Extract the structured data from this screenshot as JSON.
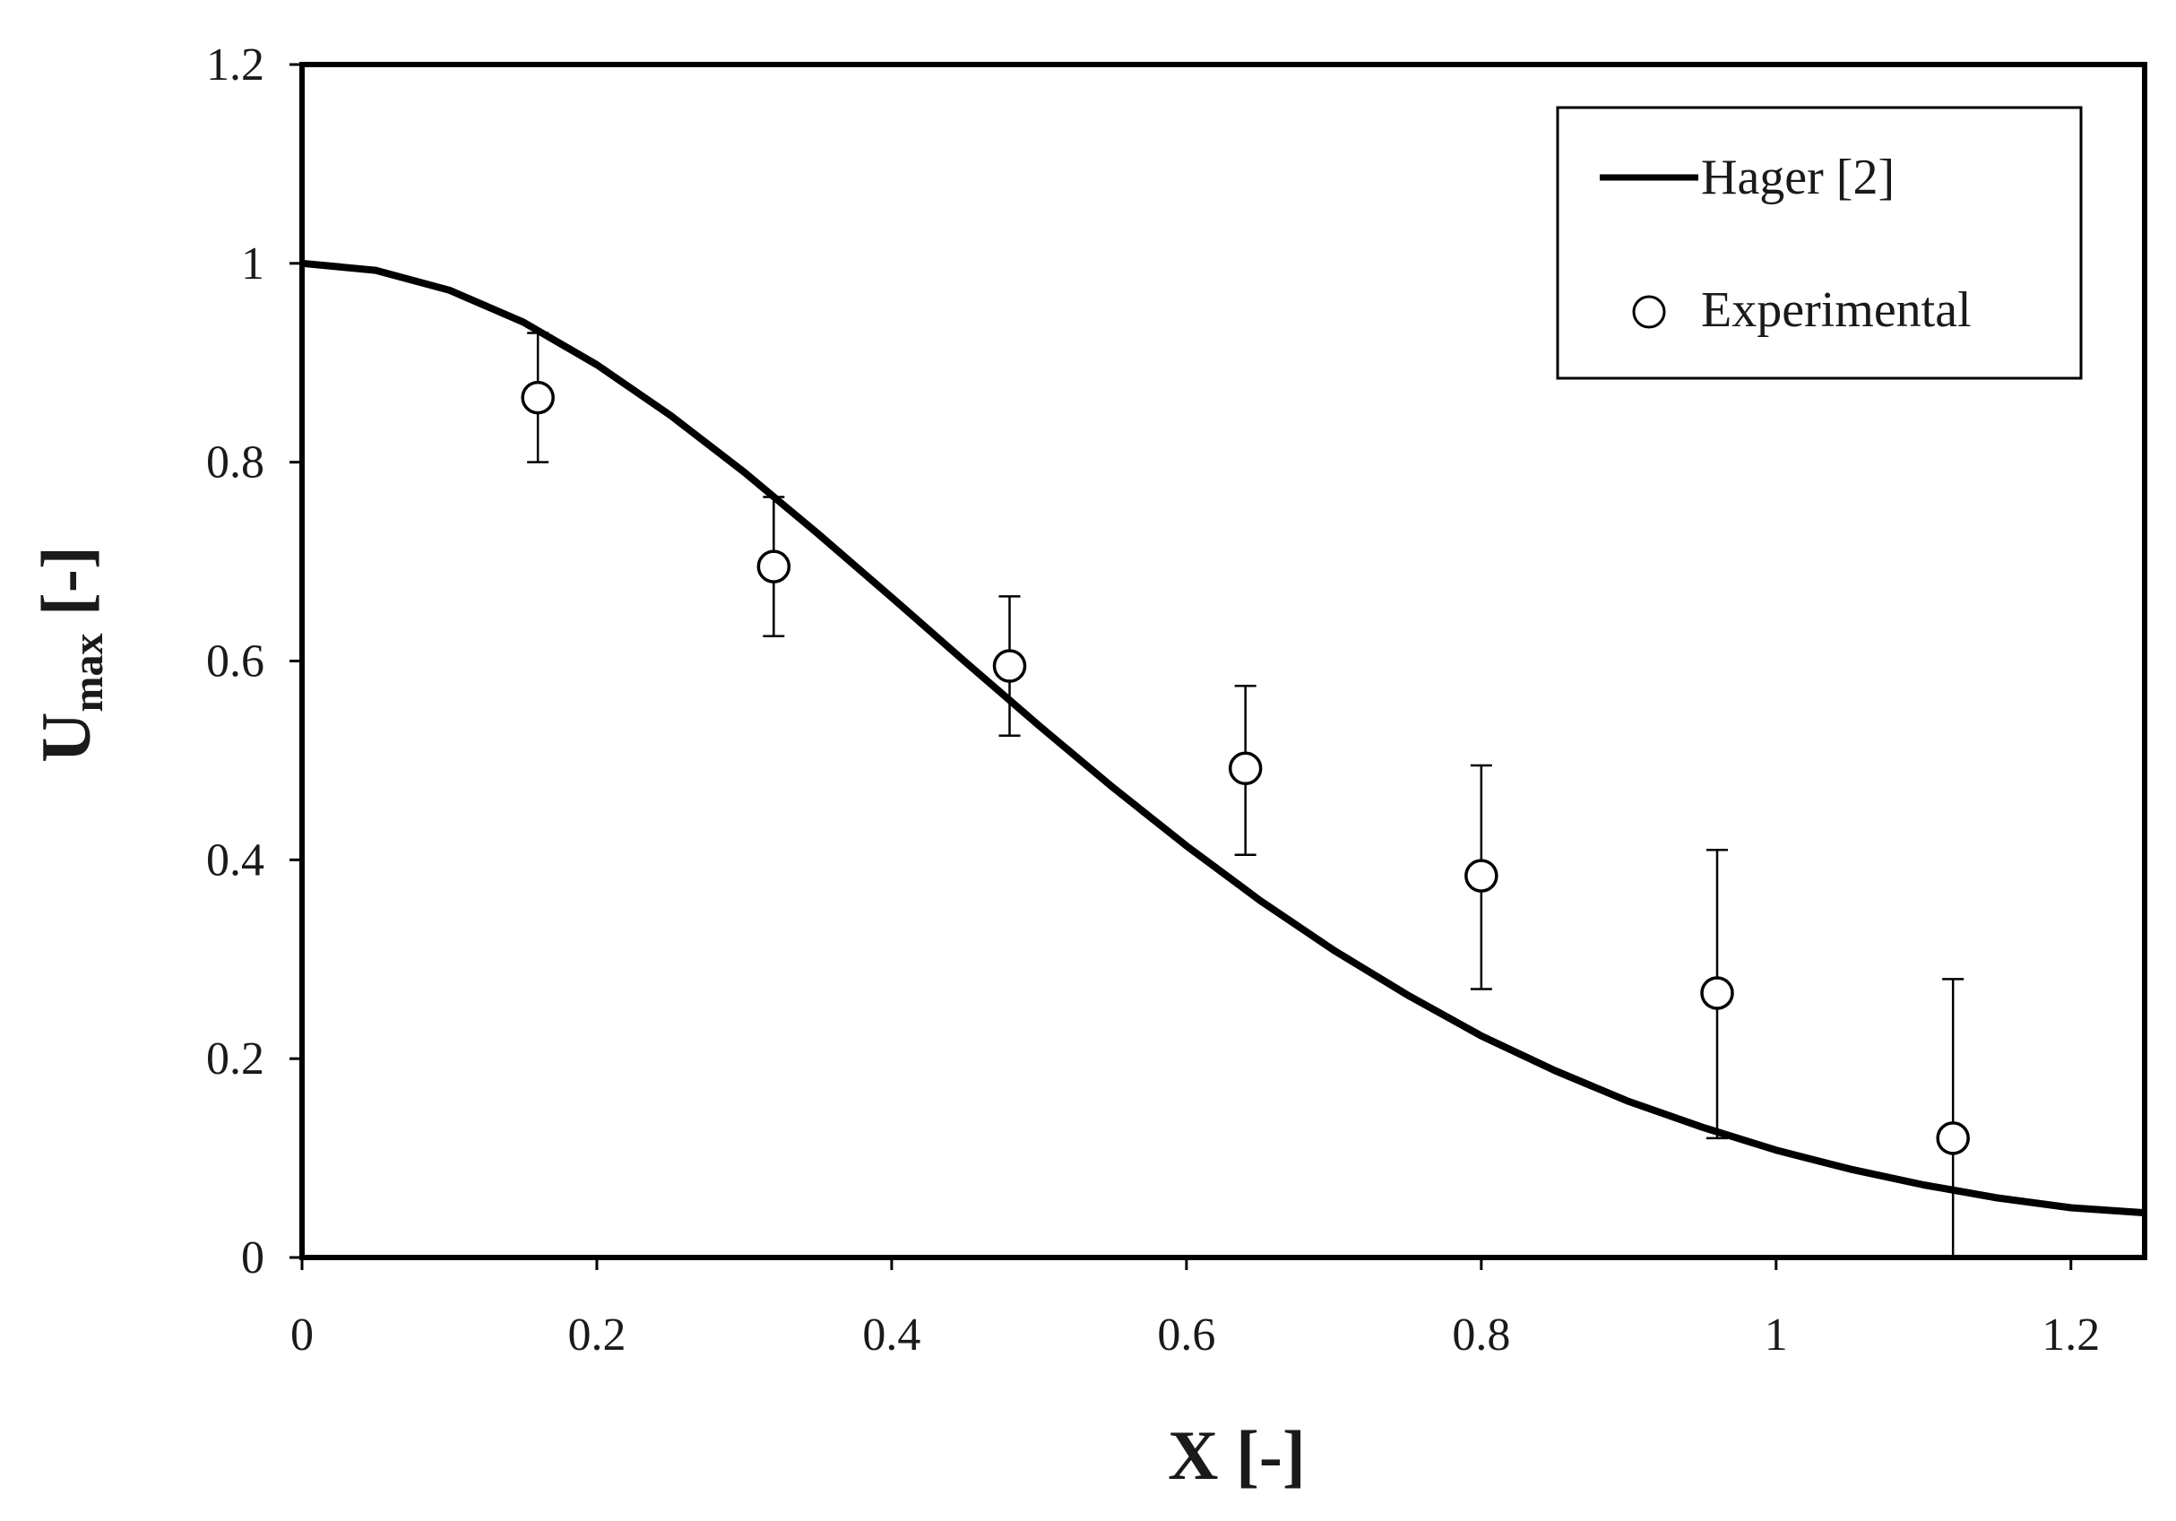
{
  "chart_data": {
    "type": "scatter",
    "xlabel": "X [-]",
    "ylabel": {
      "main": "U",
      "sub": "max",
      "suffix": " [-]"
    },
    "xlim": [
      0,
      1.25
    ],
    "ylim": [
      0,
      1.2
    ],
    "xticks": [
      0,
      0.2,
      0.4,
      0.6,
      0.8,
      1,
      1.2
    ],
    "xtick_labels": [
      "0",
      "0.2",
      "0.4",
      "0.6",
      "0.8",
      "1",
      "1.2"
    ],
    "yticks": [
      0,
      0.2,
      0.4,
      0.6,
      0.8,
      1,
      1.2
    ],
    "ytick_labels": [
      "0",
      "0.2",
      "0.4",
      "0.6",
      "0.8",
      "1",
      "1.2"
    ],
    "grid": false,
    "legend_position": "top-right",
    "series": [
      {
        "name": "Hager [2]",
        "kind": "line",
        "color": "#000000",
        "x": [
          0,
          0.05,
          0.1,
          0.15,
          0.2,
          0.25,
          0.3,
          0.35,
          0.4,
          0.45,
          0.5,
          0.55,
          0.6,
          0.65,
          0.7,
          0.75,
          0.8,
          0.85,
          0.9,
          0.95,
          1.0,
          1.05,
          1.1,
          1.15,
          1.2,
          1.25
        ],
        "y": [
          1.0,
          0.993,
          0.973,
          0.941,
          0.898,
          0.847,
          0.79,
          0.728,
          0.664,
          0.599,
          0.535,
          0.473,
          0.414,
          0.359,
          0.309,
          0.264,
          0.223,
          0.188,
          0.157,
          0.131,
          0.108,
          0.089,
          0.073,
          0.06,
          0.05,
          0.045
        ]
      },
      {
        "name": "Experimental",
        "kind": "scatter",
        "marker": "open-circle",
        "color": "#000000",
        "x": [
          0.16,
          0.32,
          0.48,
          0.64,
          0.8,
          0.96,
          1.12
        ],
        "y": [
          0.865,
          0.695,
          0.595,
          0.492,
          0.384,
          0.266,
          0.12
        ],
        "err_low": [
          0.8,
          0.625,
          0.525,
          0.405,
          0.27,
          0.12,
          0.0
        ],
        "err_high": [
          0.93,
          0.765,
          0.665,
          0.575,
          0.495,
          0.41,
          0.28
        ]
      }
    ]
  }
}
